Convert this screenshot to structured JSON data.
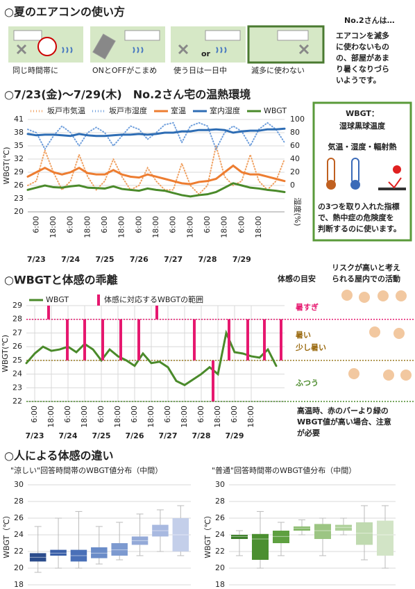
{
  "section1": {
    "title": "○夏のエアコンの使い方",
    "panels": [
      "同じ時間帯に",
      "ONとOFFがこまめ",
      "使う日は一日中",
      "滅多に使わない"
    ],
    "or": "or",
    "note_title": "No.2さんは…",
    "note_lines": [
      "エアコンを滅多",
      "に使わないもの",
      "の、部屋があま",
      "り暑くなりづら",
      "いようです。"
    ]
  },
  "section2": {
    "title": "○7/23(金)～7/29(木)　No.2さん宅の温熱環境"
  },
  "wbgt_box": {
    "title": "WBGT：",
    "subtitle": "湿球黒球温度",
    "factors": "気温・湿度・輻射熱",
    "desc": [
      "の3つを取り入れた指標",
      "で、熱中症の危険度を",
      "判断するのに使います。"
    ]
  },
  "section3": {
    "title": "○WBGTと体感の乖離",
    "guide": "体感の目安",
    "risk": [
      "リスクが高いと考え",
      "られる屋内での活動"
    ],
    "levels": [
      "暑すぎ",
      "暑い",
      "少し暑い",
      "ふつう"
    ],
    "note": [
      "高温時、赤のバーより緑の",
      "WBGT値が高い場合、注意",
      "が必要"
    ]
  },
  "section4": {
    "title": "○人による体感の違い"
  },
  "chart_data": [
    {
      "type": "line",
      "ylabel": "WBGT(℃)",
      "y2label": "湿度(%)",
      "grid": true,
      "xlim": [
        0,
        180
      ],
      "ylim": [
        20,
        41
      ],
      "yticks": [
        20,
        23,
        26,
        29,
        32,
        35,
        38,
        41
      ],
      "y2lim": [
        -40,
        100
      ],
      "y2ticks": [
        0,
        20,
        40,
        60,
        80,
        100
      ],
      "xticks": [
        {
          "value": 6,
          "label": "6:00"
        },
        {
          "value": 18,
          "label": "18:00"
        },
        {
          "value": 30,
          "label": "6:00"
        },
        {
          "value": 42,
          "label": "18:00"
        },
        {
          "value": 54,
          "label": "6:00"
        },
        {
          "value": 66,
          "label": "18:00"
        },
        {
          "value": 78,
          "label": "6:00"
        },
        {
          "value": 90,
          "label": "18:00"
        },
        {
          "value": 102,
          "label": "6:00"
        },
        {
          "value": 114,
          "label": "18:00"
        },
        {
          "value": 126,
          "label": "6:00"
        },
        {
          "value": 138,
          "label": "18:00"
        },
        {
          "value": 150,
          "label": "6:00"
        },
        {
          "value": 162,
          "label": "18:00"
        }
      ],
      "date_ticks": [
        {
          "value": 6,
          "label": "7/23"
        },
        {
          "value": 30,
          "label": "7/24"
        },
        {
          "value": 54,
          "label": "7/25"
        },
        {
          "value": 78,
          "label": "7/26"
        },
        {
          "value": 102,
          "label": "7/27"
        },
        {
          "value": 126,
          "label": "7/28"
        },
        {
          "value": 150,
          "label": "7/29"
        }
      ],
      "x": [
        0,
        6,
        12,
        18,
        24,
        30,
        36,
        42,
        48,
        54,
        60,
        66,
        72,
        78,
        84,
        90,
        96,
        102,
        108,
        114,
        120,
        126,
        132,
        138,
        144,
        150,
        156,
        162,
        168,
        174,
        180
      ],
      "series": [
        {
          "name": "坂戸市気温",
          "color": "#f0a060",
          "style": "dotted",
          "values": [
            26,
            27,
            34,
            29,
            25,
            27,
            33,
            28,
            25,
            27,
            32,
            28,
            25,
            26,
            30,
            27,
            25,
            25,
            31,
            26,
            24,
            26,
            35,
            28,
            26,
            27,
            33,
            27,
            25,
            27,
            32
          ]
        },
        {
          "name": "坂戸市湿度",
          "color": "#6f9fdc",
          "style": "dotted",
          "axis": "y2",
          "values": [
            85,
            80,
            55,
            75,
            90,
            80,
            60,
            80,
            88,
            80,
            60,
            75,
            90,
            85,
            70,
            80,
            92,
            95,
            65,
            90,
            95,
            90,
            55,
            80,
            90,
            82,
            60,
            85,
            95,
            85,
            65
          ]
        },
        {
          "name": "室温",
          "color": "#ed7d31",
          "values": [
            28,
            29,
            30,
            29,
            28.5,
            29,
            30,
            28.8,
            28.5,
            28.5,
            29.5,
            28.5,
            28,
            27.8,
            28.5,
            28,
            27.5,
            27,
            26.5,
            26.3,
            26.8,
            27,
            27.5,
            29,
            30.5,
            29,
            28.5,
            28.5,
            28,
            27.5,
            27
          ]
        },
        {
          "name": "室内湿度",
          "color": "#2e6db4",
          "axis": "y2",
          "values": [
            78,
            76,
            77,
            77,
            76,
            75,
            78,
            76,
            75,
            75,
            76,
            77,
            77,
            78,
            77,
            78,
            80,
            80,
            82,
            82,
            84,
            84,
            85,
            84,
            80,
            82,
            83,
            83,
            85,
            85,
            86
          ]
        },
        {
          "name": "WBGT",
          "color": "#4a8a2a",
          "values": [
            25,
            25.5,
            26,
            25.6,
            25.5,
            25.8,
            26,
            25.5,
            25.4,
            25.3,
            25.8,
            25.2,
            25,
            24.8,
            25.3,
            25,
            24.8,
            24.3,
            23.8,
            23.5,
            23.8,
            24,
            24.5,
            25.5,
            26.5,
            26,
            25.5,
            25.3,
            25,
            24.8,
            24.5
          ]
        }
      ]
    },
    {
      "type": "line",
      "ylabel": "WBGT(℃)",
      "grid": true,
      "xgrid": true,
      "xlim": [
        0,
        186
      ],
      "ylim": [
        22,
        29
      ],
      "yticks": [
        22,
        23,
        24,
        25,
        26,
        27,
        28,
        29
      ],
      "xticks": [
        {
          "value": 6,
          "label": "6:00"
        },
        {
          "value": 18,
          "label": "18:00"
        },
        {
          "value": 30,
          "label": "6:00"
        },
        {
          "value": 42,
          "label": "18:00"
        },
        {
          "value": 54,
          "label": "6:00"
        },
        {
          "value": 66,
          "label": "18:00"
        },
        {
          "value": 78,
          "label": "6:00"
        },
        {
          "value": 90,
          "label": "18:00"
        },
        {
          "value": 102,
          "label": "6:00"
        },
        {
          "value": 114,
          "label": "18:00"
        },
        {
          "value": 126,
          "label": "6:00"
        },
        {
          "value": 138,
          "label": "18:00"
        },
        {
          "value": 150,
          "label": "6:00"
        },
        {
          "value": 162,
          "label": "18:00"
        }
      ],
      "date_ticks": [
        {
          "value": 6,
          "label": "7/23"
        },
        {
          "value": 30,
          "label": "7/24"
        },
        {
          "value": 54,
          "label": "7/25"
        },
        {
          "value": 78,
          "label": "7/26"
        },
        {
          "value": 102,
          "label": "7/27"
        },
        {
          "value": 126,
          "label": "7/28"
        },
        {
          "value": 150,
          "label": "7/29"
        }
      ],
      "x": [
        0,
        6,
        12,
        18,
        24,
        30,
        36,
        42,
        48,
        54,
        60,
        66,
        72,
        78,
        84,
        90,
        96,
        102,
        108,
        114,
        120,
        126,
        132,
        138,
        144,
        150,
        156,
        162,
        168,
        174,
        180
      ],
      "series": [
        {
          "name": "WBGT",
          "color": "#4a8a2a",
          "values": [
            24.8,
            25.5,
            26,
            25.7,
            25.8,
            26,
            25.6,
            26.2,
            25.8,
            25,
            25.8,
            25.3,
            25,
            24.6,
            25.5,
            24.8,
            24.9,
            24.5,
            23.5,
            23.2,
            23.6,
            24,
            24.5,
            24,
            27,
            25.6,
            25.5,
            25.3,
            25.2,
            25.8,
            24.6
          ]
        }
      ],
      "ranges": {
        "name": "体感に対応するWBGTの範囲",
        "color": "#e6186f",
        "x": [
          16,
          29.5,
          42,
          55,
          68,
          81,
          94,
          121,
          134.5,
          146,
          159.5,
          171.5,
          183.5
        ],
        "low": [
          28,
          25,
          25,
          25,
          25,
          25,
          28,
          25,
          22,
          25,
          25,
          25,
          25
        ],
        "high": [
          29,
          28,
          28,
          28,
          28,
          28,
          29,
          28,
          25,
          28,
          28,
          28,
          28
        ]
      },
      "ref_lines": [
        {
          "value": 28,
          "color": "#e6186f"
        },
        {
          "value": 25,
          "color": "#9a7a20"
        },
        {
          "value": 22,
          "color": "#4a8a2a"
        }
      ]
    },
    {
      "type": "box",
      "title": "\"涼しい\"回答時間帯のWBGT値分布（中間）",
      "ylabel": "WBGT（℃）",
      "ylim": [
        18,
        30
      ],
      "yticks": [
        18,
        20,
        22,
        24,
        26,
        28,
        30
      ],
      "grid": true,
      "boxes": [
        {
          "low": 19.5,
          "q1": 20.8,
          "median": 21.3,
          "q3": 21.8,
          "high": 25,
          "color": "#2b4c8c"
        },
        {
          "low": 20,
          "q1": 21.5,
          "median": 21.8,
          "q3": 22.2,
          "high": 26,
          "color": "#3a5fa8"
        },
        {
          "low": 20,
          "q1": 20.8,
          "median": 21.5,
          "q3": 22.2,
          "high": 26.8,
          "color": "#4a70b8"
        },
        {
          "low": 20.5,
          "q1": 21.2,
          "median": 21.8,
          "q3": 22.5,
          "high": 25,
          "color": "#6a8cc8"
        },
        {
          "low": 21,
          "q1": 21.5,
          "median": 22.2,
          "q3": 23,
          "high": 25.5,
          "color": "#7d9ad0"
        },
        {
          "low": 21.5,
          "q1": 22.8,
          "median": 23.3,
          "q3": 23.8,
          "high": 26.5,
          "color": "#94aad8"
        },
        {
          "low": 22,
          "q1": 23.8,
          "median": 24.5,
          "q3": 25.2,
          "high": 27,
          "color": "#a8b9e0"
        },
        {
          "low": 21.5,
          "q1": 22,
          "median": 24,
          "q3": 26,
          "high": 27.5,
          "color": "#c4cfea"
        }
      ]
    },
    {
      "type": "box",
      "title": "\"普通\"回答時間帯のWBGT値分布（中間）",
      "ylabel": "WBGT（℃）",
      "ylim": [
        18,
        30
      ],
      "yticks": [
        18,
        20,
        22,
        24,
        26,
        28,
        30
      ],
      "grid": true,
      "boxes": [
        {
          "low": 21.5,
          "q1": 23.5,
          "median": 23.8,
          "q3": 24,
          "high": 24.5,
          "color": "#3d7f2a"
        },
        {
          "low": 20,
          "q1": 21,
          "median": 23.5,
          "q3": 24.1,
          "high": 26.8,
          "color": "#4b8f30"
        },
        {
          "low": 21.5,
          "q1": 23,
          "median": 23.8,
          "q3": 24.5,
          "high": 25.5,
          "color": "#5ea040"
        },
        {
          "low": 24,
          "q1": 24.5,
          "median": 24.8,
          "q3": 25,
          "high": 25.8,
          "color": "#86b96a"
        },
        {
          "low": 21.5,
          "q1": 23.5,
          "median": 24.5,
          "q3": 25.3,
          "high": 26,
          "color": "#9cc583"
        },
        {
          "low": 24,
          "q1": 24.5,
          "median": 24.9,
          "q3": 25.2,
          "high": 26,
          "color": "#aed09a"
        },
        {
          "low": 21,
          "q1": 22.8,
          "median": 24.2,
          "q3": 25.5,
          "high": 27.5,
          "color": "#c0dab0"
        },
        {
          "low": 20,
          "q1": 21.5,
          "median": 24,
          "q3": 25.7,
          "high": 27.5,
          "color": "#d2e4c6"
        }
      ]
    }
  ]
}
